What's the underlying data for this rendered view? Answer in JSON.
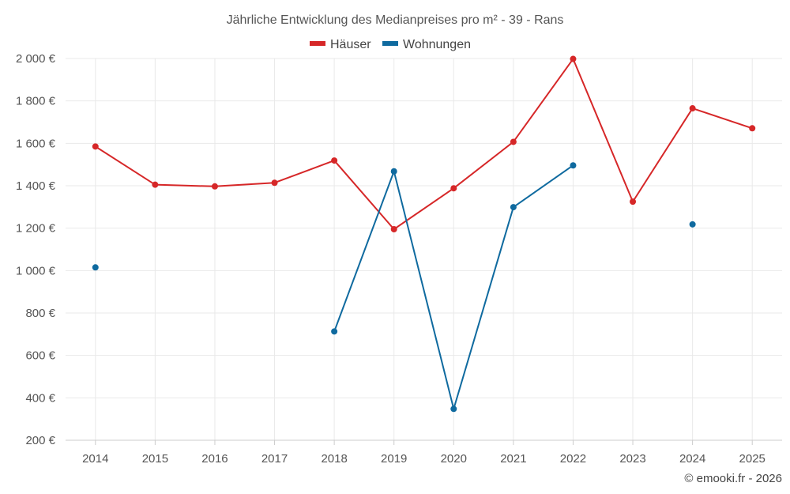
{
  "chart_data": {
    "type": "line",
    "title": "Jährliche Entwicklung des Medianpreises pro m² - 39 - Rans",
    "categories": [
      "2014",
      "2015",
      "2016",
      "2017",
      "2018",
      "2019",
      "2020",
      "2021",
      "2022",
      "2023",
      "2024",
      "2025"
    ],
    "series": [
      {
        "name": "Häuser",
        "color": "#d62728",
        "values": [
          1585,
          1405,
          1397,
          1414,
          1519,
          1195,
          1388,
          1607,
          1998,
          1325,
          1765,
          1671
        ]
      },
      {
        "name": "Wohnungen",
        "color": "#0f6a9f",
        "values": [
          1015,
          null,
          null,
          null,
          713,
          1468,
          348,
          1299,
          1496,
          null,
          1218,
          null
        ]
      }
    ],
    "ylim": [
      200,
      2000
    ],
    "yticks": [
      200,
      400,
      600,
      800,
      1000,
      1200,
      1400,
      1600,
      1800,
      2000
    ],
    "ytick_labels": [
      "200 €",
      "400 €",
      "600 €",
      "800 €",
      "1 000 €",
      "1 200 €",
      "1 400 €",
      "1 600 €",
      "1 800 €",
      "2 000 €"
    ],
    "xlabel": "",
    "ylabel": "",
    "grid": true,
    "legend_position": "top-center"
  },
  "credit": "© emooki.fr - 2026"
}
